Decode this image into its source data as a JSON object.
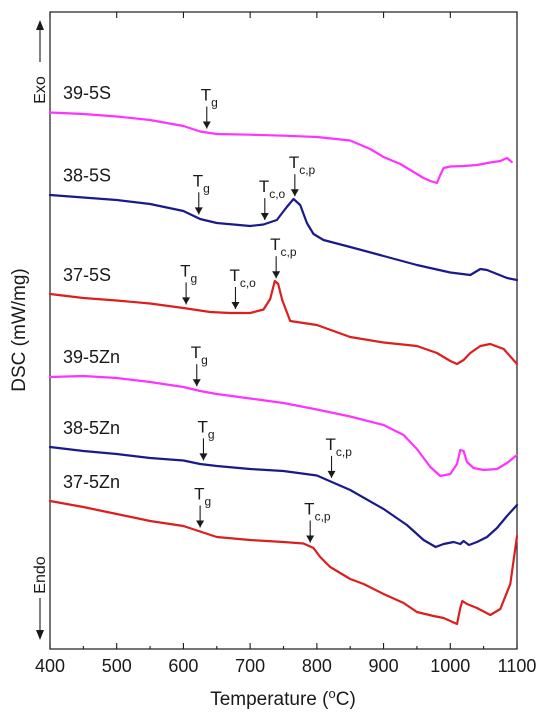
{
  "chart_data": {
    "type": "line",
    "xlabel": "Temperature (",
    "xlabel_sup": "o",
    "xlabel_unit": "C)",
    "ylabel": "DSC (mW/mg)",
    "xlim": [
      400,
      1100
    ],
    "x_ticks": [
      "400",
      "500",
      "600",
      "700",
      "800",
      "900",
      "1000",
      "1100"
    ],
    "y_ticks_shown": false,
    "legend": "none",
    "direction_labels": {
      "top": "Exo",
      "bottom": "Endo"
    },
    "series": [
      {
        "name": "39-5S",
        "color": "#ff33ff",
        "points": [
          [
            400,
            100.5
          ],
          [
            450,
            102
          ],
          [
            500,
            104.5
          ],
          [
            550,
            108
          ],
          [
            600,
            114
          ],
          [
            625,
            119.5
          ],
          [
            650,
            122
          ],
          [
            700,
            122.7
          ],
          [
            750,
            123.7
          ],
          [
            800,
            125
          ],
          [
            850,
            128.5
          ],
          [
            880,
            137
          ],
          [
            900,
            145
          ],
          [
            925,
            152
          ],
          [
            945,
            160
          ],
          [
            960,
            166
          ],
          [
            970,
            169
          ],
          [
            980,
            171
          ],
          [
            985,
            163
          ],
          [
            990,
            156
          ],
          [
            1000,
            154.5
          ],
          [
            1020,
            154
          ],
          [
            1040,
            153
          ],
          [
            1060,
            150.5
          ],
          [
            1075,
            149
          ],
          [
            1085,
            146
          ],
          [
            1092,
            150
          ]
        ]
      },
      {
        "name": "38-5S",
        "color": "#1a1a8c",
        "points": [
          [
            400,
            183
          ],
          [
            450,
            185.5
          ],
          [
            500,
            188
          ],
          [
            550,
            192
          ],
          [
            600,
            199
          ],
          [
            625,
            207
          ],
          [
            650,
            211
          ],
          [
            700,
            214
          ],
          [
            720,
            212.5
          ],
          [
            740,
            208
          ],
          [
            755,
            195
          ],
          [
            765,
            187
          ],
          [
            775,
            193
          ],
          [
            785,
            211
          ],
          [
            795,
            222
          ],
          [
            810,
            228
          ],
          [
            850,
            235
          ],
          [
            900,
            244
          ],
          [
            950,
            253
          ],
          [
            1000,
            260.5
          ],
          [
            1030,
            263
          ],
          [
            1045,
            257
          ],
          [
            1055,
            258
          ],
          [
            1070,
            262
          ],
          [
            1085,
            266
          ],
          [
            1100,
            268
          ]
        ]
      },
      {
        "name": "37-5S",
        "color": "#dc1e1e",
        "points": [
          [
            400,
            282
          ],
          [
            450,
            286
          ],
          [
            500,
            288.5
          ],
          [
            550,
            291.5
          ],
          [
            600,
            296
          ],
          [
            640,
            300
          ],
          [
            670,
            301
          ],
          [
            700,
            301
          ],
          [
            720,
            297.5
          ],
          [
            730,
            287
          ],
          [
            737,
            269
          ],
          [
            742,
            272
          ],
          [
            748,
            288
          ],
          [
            760,
            309
          ],
          [
            800,
            313
          ],
          [
            850,
            325
          ],
          [
            900,
            330.5
          ],
          [
            950,
            334
          ],
          [
            980,
            341
          ],
          [
            1000,
            349
          ],
          [
            1010,
            352
          ],
          [
            1020,
            348
          ],
          [
            1030,
            341
          ],
          [
            1045,
            334
          ],
          [
            1060,
            332
          ],
          [
            1080,
            337
          ],
          [
            1100,
            352
          ]
        ]
      },
      {
        "name": "39-5Zn",
        "color": "#ff33ff",
        "points": [
          [
            400,
            365
          ],
          [
            450,
            364
          ],
          [
            500,
            366
          ],
          [
            550,
            370
          ],
          [
            600,
            375
          ],
          [
            625,
            379
          ],
          [
            650,
            382
          ],
          [
            700,
            386.5
          ],
          [
            750,
            391
          ],
          [
            800,
            397.5
          ],
          [
            850,
            404.5
          ],
          [
            900,
            413
          ],
          [
            930,
            423
          ],
          [
            950,
            437
          ],
          [
            970,
            455
          ],
          [
            985,
            464
          ],
          [
            1000,
            462
          ],
          [
            1010,
            452
          ],
          [
            1015,
            438
          ],
          [
            1020,
            439
          ],
          [
            1025,
            450
          ],
          [
            1035,
            456
          ],
          [
            1050,
            458
          ],
          [
            1070,
            457
          ],
          [
            1085,
            451
          ],
          [
            1100,
            443
          ]
        ]
      },
      {
        "name": "38-5Zn",
        "color": "#1a1a8c",
        "points": [
          [
            400,
            435
          ],
          [
            450,
            439
          ],
          [
            500,
            442
          ],
          [
            550,
            446
          ],
          [
            600,
            448.5
          ],
          [
            625,
            452
          ],
          [
            650,
            454
          ],
          [
            700,
            457
          ],
          [
            750,
            459
          ],
          [
            800,
            463.5
          ],
          [
            850,
            478
          ],
          [
            900,
            497
          ],
          [
            935,
            513
          ],
          [
            960,
            528
          ],
          [
            978,
            535
          ],
          [
            990,
            532
          ],
          [
            1005,
            530
          ],
          [
            1015,
            532
          ],
          [
            1020,
            529
          ],
          [
            1028,
            533
          ],
          [
            1040,
            530
          ],
          [
            1055,
            525
          ],
          [
            1070,
            516
          ],
          [
            1085,
            504
          ],
          [
            1100,
            493
          ]
        ]
      },
      {
        "name": "37-5Zn",
        "color": "#dc1e1e",
        "points": [
          [
            400,
            489
          ],
          [
            450,
            495
          ],
          [
            500,
            502
          ],
          [
            550,
            509
          ],
          [
            600,
            514
          ],
          [
            650,
            525
          ],
          [
            700,
            528
          ],
          [
            750,
            530
          ],
          [
            780,
            531.5
          ],
          [
            795,
            536
          ],
          [
            805,
            545
          ],
          [
            820,
            555
          ],
          [
            850,
            567
          ],
          [
            870,
            572
          ],
          [
            900,
            582
          ],
          [
            930,
            591
          ],
          [
            950,
            600
          ],
          [
            975,
            604
          ],
          [
            990,
            606
          ],
          [
            1000,
            609
          ],
          [
            1010,
            612
          ],
          [
            1015,
            596
          ],
          [
            1018,
            589
          ],
          [
            1025,
            592
          ],
          [
            1040,
            596
          ],
          [
            1060,
            603
          ],
          [
            1075,
            597
          ],
          [
            1090,
            572
          ],
          [
            1100,
            524
          ]
        ]
      }
    ],
    "annotations": [
      {
        "series": "39-5S",
        "label": "T",
        "sub": "g",
        "x": 635
      },
      {
        "series": "38-5S",
        "label": "T",
        "sub": "g",
        "x": 623
      },
      {
        "series": "38-5S",
        "label": "T",
        "sub": "c,o",
        "x": 722
      },
      {
        "series": "38-5S",
        "label": "T",
        "sub": "c,p",
        "x": 767
      },
      {
        "series": "37-5S",
        "label": "T",
        "sub": "g",
        "x": 604
      },
      {
        "series": "37-5S",
        "label": "T",
        "sub": "c,o",
        "x": 678
      },
      {
        "series": "37-5S",
        "label": "T",
        "sub": "c,p",
        "x": 739
      },
      {
        "series": "39-5Zn",
        "label": "T",
        "sub": "g",
        "x": 620
      },
      {
        "series": "38-5Zn",
        "label": "T",
        "sub": "g",
        "x": 630
      },
      {
        "series": "38-5Zn",
        "label": "T",
        "sub": "c,p",
        "x": 822
      },
      {
        "series": "37-5Zn",
        "label": "T",
        "sub": "g",
        "x": 625
      },
      {
        "series": "37-5Zn",
        "label": "T",
        "sub": "c,p",
        "x": 790
      }
    ]
  }
}
